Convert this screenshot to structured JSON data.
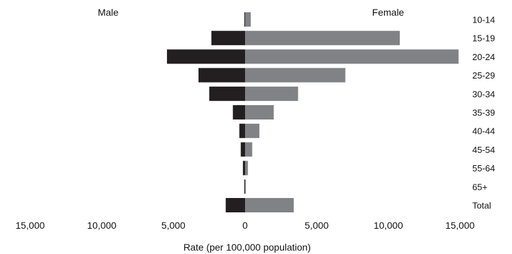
{
  "chart_data": {
    "type": "bar",
    "orientation": "horizontal-butterfly",
    "categories": [
      "10-14",
      "15-19",
      "20-24",
      "25-29",
      "30-34",
      "35-39",
      "40-44",
      "45-54",
      "55-64",
      "65+",
      "Total"
    ],
    "series": [
      {
        "name": "Male",
        "side": "left",
        "color": "#231f20",
        "values": [
          50,
          2350,
          5450,
          3250,
          2500,
          850,
          400,
          300,
          150,
          50,
          1350
        ]
      },
      {
        "name": "Female",
        "side": "right",
        "color": "#808285",
        "values": [
          400,
          10800,
          14900,
          7000,
          3700,
          2000,
          1000,
          500,
          200,
          20,
          3400
        ]
      }
    ],
    "xlabel": "Rate (per 100,000 population)",
    "ylabel": "",
    "xlim": [
      -15000,
      15000
    ],
    "x_ticks": [
      {
        "value": -15000,
        "label": "15,000"
      },
      {
        "value": -10000,
        "label": "10,000"
      },
      {
        "value": -5000,
        "label": "5,000"
      },
      {
        "value": 0,
        "label": "0"
      },
      {
        "value": 5000,
        "label": "5,000"
      },
      {
        "value": 10000,
        "label": "10,000"
      },
      {
        "value": 15000,
        "label": "15,000"
      }
    ],
    "grid": false,
    "legend": "top"
  }
}
